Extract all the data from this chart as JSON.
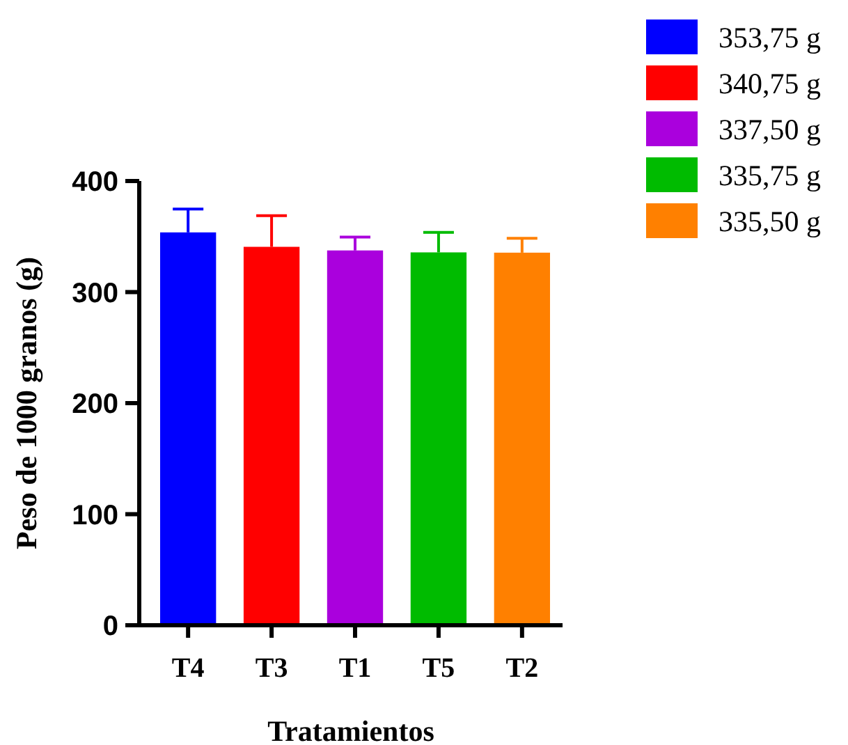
{
  "chart_data": {
    "type": "bar",
    "xlabel": "Tratamientos",
    "ylabel": "Peso de 1000 granos (g)",
    "categories": [
      "T4",
      "T3",
      "T1",
      "T5",
      "T2"
    ],
    "series": [
      {
        "name": "353,75 g",
        "color": "#0000ff",
        "values": [
          353.75,
          null,
          null,
          null,
          null
        ],
        "errors": [
          21,
          null,
          null,
          null,
          null
        ]
      },
      {
        "name": "340,75 g",
        "color": "#ff0000",
        "values": [
          null,
          340.75,
          null,
          null,
          null
        ],
        "errors": [
          null,
          28,
          null,
          null,
          null
        ]
      },
      {
        "name": "337,50 g",
        "color": "#aa00dd",
        "values": [
          null,
          null,
          337.5,
          null,
          null
        ],
        "errors": [
          null,
          null,
          12,
          null,
          null
        ]
      },
      {
        "name": "335,75 g",
        "color": "#00bb00",
        "values": [
          null,
          null,
          null,
          335.75,
          null
        ],
        "errors": [
          null,
          null,
          null,
          18,
          null
        ]
      },
      {
        "name": "335,50 g",
        "color": "#ff8000",
        "values": [
          null,
          null,
          null,
          null,
          335.5
        ],
        "errors": [
          null,
          null,
          null,
          null,
          13
        ]
      }
    ],
    "ylim": [
      0,
      400
    ],
    "yticks": [
      0,
      100,
      200,
      300,
      400
    ],
    "legend": "top right"
  }
}
